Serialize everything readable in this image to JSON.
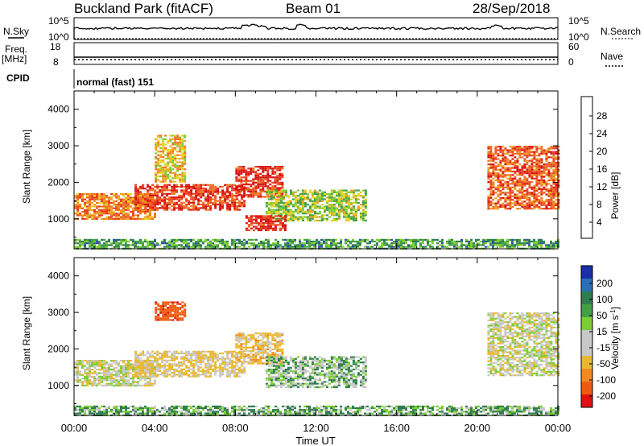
{
  "header": {
    "station": "Buckland Park (fitACF)",
    "beam": "Beam 01",
    "date": "28/Sep/2018"
  },
  "top_panels": {
    "nsky_label": "N.Sky",
    "nsearch_label": "N.Search",
    "nsky_ticks": [
      "10^5",
      "10^0"
    ],
    "nsky_right_ticks": [
      "10^5",
      "10^0"
    ],
    "freq_label": "Freq.",
    "freq_unit": "[MHz]",
    "freq_ticks": [
      "18",
      "8"
    ],
    "nave_label": "Nave",
    "nave_ticks": [
      "60",
      "0"
    ],
    "cpid_label": "CPID",
    "cpid_value": "normal (fast) 151"
  },
  "x_axis": {
    "label": "Time UT",
    "ticks": [
      "00:00",
      "04:00",
      "08:00",
      "12:00",
      "16:00",
      "20:00",
      "00:00"
    ]
  },
  "power_colorbar": {
    "label": "Power [dB]",
    "ticks": [
      "28",
      "24",
      "20",
      "16",
      "12",
      "8",
      "4"
    ],
    "colors": [
      "#1a1aff",
      "#2d4fb0",
      "#2e7d4f",
      "#43a047",
      "#7ccd32",
      "#e8d21f",
      "#f0a020",
      "#f07020",
      "#e84020",
      "#d81010"
    ]
  },
  "velocity_colorbar": {
    "label": "Velocity [m s",
    "label_sup": "-1",
    "label_end": "]",
    "ticks": [
      "200",
      "100",
      "50",
      "15",
      "-15",
      "-50",
      "-100",
      "-200"
    ],
    "colors": [
      "#1a2ea8",
      "#2a6fb8",
      "#2e7d4f",
      "#43a047",
      "#7ccd32",
      "#c8c8c8",
      "#c8c8c8",
      "#e8b830",
      "#f08a20",
      "#f05a10",
      "#e01010"
    ]
  },
  "chart_data": [
    {
      "type": "heatmap",
      "title": "Power",
      "xlabel": "",
      "ylabel": "Slant Range [km]",
      "ylim": [
        180,
        4500
      ],
      "xlim": [
        "00:00",
        "24:00"
      ],
      "y_ticks": [
        1000,
        2000,
        3000,
        4000
      ],
      "colorbar": "Power [dB]",
      "colorbar_range": [
        0,
        30
      ],
      "regions": [
        {
          "t_start": 0.0,
          "t_end": 24.0,
          "range_min": 180,
          "range_max": 450,
          "value": 10
        },
        {
          "t_start": 0.0,
          "t_end": 4.0,
          "range_min": 1000,
          "range_max": 1700,
          "value": 22
        },
        {
          "t_start": 3.0,
          "t_end": 8.5,
          "range_min": 1250,
          "range_max": 1950,
          "value": 26
        },
        {
          "t_start": 8.0,
          "t_end": 10.3,
          "range_min": 1600,
          "range_max": 2450,
          "value": 27
        },
        {
          "t_start": 9.5,
          "t_end": 14.5,
          "range_min": 950,
          "range_max": 1800,
          "value": 14
        },
        {
          "t_start": 8.5,
          "t_end": 10.5,
          "range_min": 700,
          "range_max": 1100,
          "value": 28
        },
        {
          "t_start": 20.5,
          "t_end": 24.0,
          "range_min": 1300,
          "range_max": 3000,
          "value": 24
        },
        {
          "t_start": 4.0,
          "t_end": 5.5,
          "range_min": 2000,
          "range_max": 3300,
          "value": 18
        }
      ]
    },
    {
      "type": "heatmap",
      "title": "Velocity",
      "xlabel": "Time UT",
      "ylabel": "Slant Range [km]",
      "ylim": [
        180,
        4500
      ],
      "xlim": [
        "00:00",
        "24:00"
      ],
      "y_ticks": [
        1000,
        2000,
        3000,
        4000
      ],
      "colorbar": "Velocity [m s-1]",
      "colorbar_range": [
        -250,
        250
      ],
      "regions": [
        {
          "t_start": 0.0,
          "t_end": 24.0,
          "range_min": 180,
          "range_max": 450,
          "value": 30
        },
        {
          "t_start": 0.0,
          "t_end": 4.0,
          "range_min": 1000,
          "range_max": 1700,
          "value": 0
        },
        {
          "t_start": 3.0,
          "t_end": 8.5,
          "range_min": 1250,
          "range_max": 1950,
          "value": -20
        },
        {
          "t_start": 8.0,
          "t_end": 10.3,
          "range_min": 1600,
          "range_max": 2450,
          "value": -30
        },
        {
          "t_start": 9.5,
          "t_end": 14.5,
          "range_min": 950,
          "range_max": 1800,
          "value": 20
        },
        {
          "t_start": 20.5,
          "t_end": 24.0,
          "range_min": 1300,
          "range_max": 3000,
          "value": 0
        },
        {
          "t_start": 4.0,
          "t_end": 5.5,
          "range_min": 2800,
          "range_max": 3300,
          "value": -180
        }
      ]
    }
  ]
}
